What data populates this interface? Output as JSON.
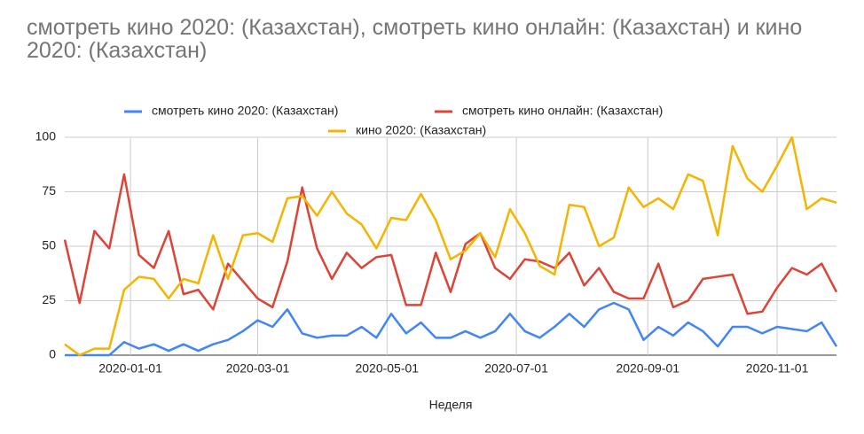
{
  "chart_data": {
    "type": "line",
    "title": "смотреть кино 2020: (Казахстан), смотреть кино онлайн: (Казахстан) и кино 2020: (Казахстан)",
    "x_label": "Неделя",
    "x_start": "2019-12-01",
    "x_step_days": 7,
    "xlim": [
      "2019-12-01",
      "2020-11-29"
    ],
    "xticks": [
      "2020-01-01",
      "2020-03-01",
      "2020-05-01",
      "2020-07-01",
      "2020-09-01",
      "2020-11-01"
    ],
    "ylim": [
      0,
      100
    ],
    "yticks": [
      0,
      25,
      50,
      75,
      100
    ],
    "grid": true,
    "legend": "top",
    "series": [
      {
        "name": "смотреть кино 2020: (Казахстан)",
        "color": "#4285f4",
        "values": [
          0,
          0,
          0,
          0,
          6,
          3,
          5,
          2,
          5,
          2,
          5,
          7,
          11,
          16,
          13,
          21,
          10,
          8,
          9,
          9,
          13,
          8,
          19,
          10,
          15,
          8,
          8,
          11,
          8,
          11,
          19,
          11,
          8,
          13,
          19,
          13,
          21,
          24,
          21,
          7,
          13,
          9,
          15,
          11,
          4,
          13,
          13,
          10,
          13,
          12,
          11,
          15,
          4
        ]
      },
      {
        "name": "смотреть кино онлайн: (Казахстан)",
        "color": "#db4437",
        "values": [
          53,
          24,
          57,
          49,
          83,
          46,
          40,
          57,
          28,
          30,
          21,
          42,
          34,
          26,
          22,
          43,
          77,
          49,
          35,
          47,
          40,
          45,
          46,
          23,
          23,
          47,
          29,
          51,
          56,
          40,
          35,
          44,
          43,
          40,
          47,
          32,
          40,
          29,
          26,
          26,
          42,
          22,
          25,
          35,
          36,
          37,
          19,
          20,
          31,
          40,
          37,
          42,
          29
        ]
      },
      {
        "name": "кино 2020: (Казахстан)",
        "color": "#f4b400",
        "values": [
          5,
          0,
          3,
          3,
          30,
          36,
          35,
          26,
          35,
          33,
          55,
          35,
          55,
          56,
          52,
          72,
          73,
          64,
          75,
          65,
          60,
          49,
          63,
          62,
          74,
          62,
          44,
          48,
          56,
          45,
          67,
          56,
          41,
          37,
          69,
          68,
          50,
          54,
          77,
          68,
          72,
          67,
          83,
          80,
          55,
          96,
          81,
          75,
          87,
          100,
          67,
          72,
          70
        ]
      }
    ]
  }
}
